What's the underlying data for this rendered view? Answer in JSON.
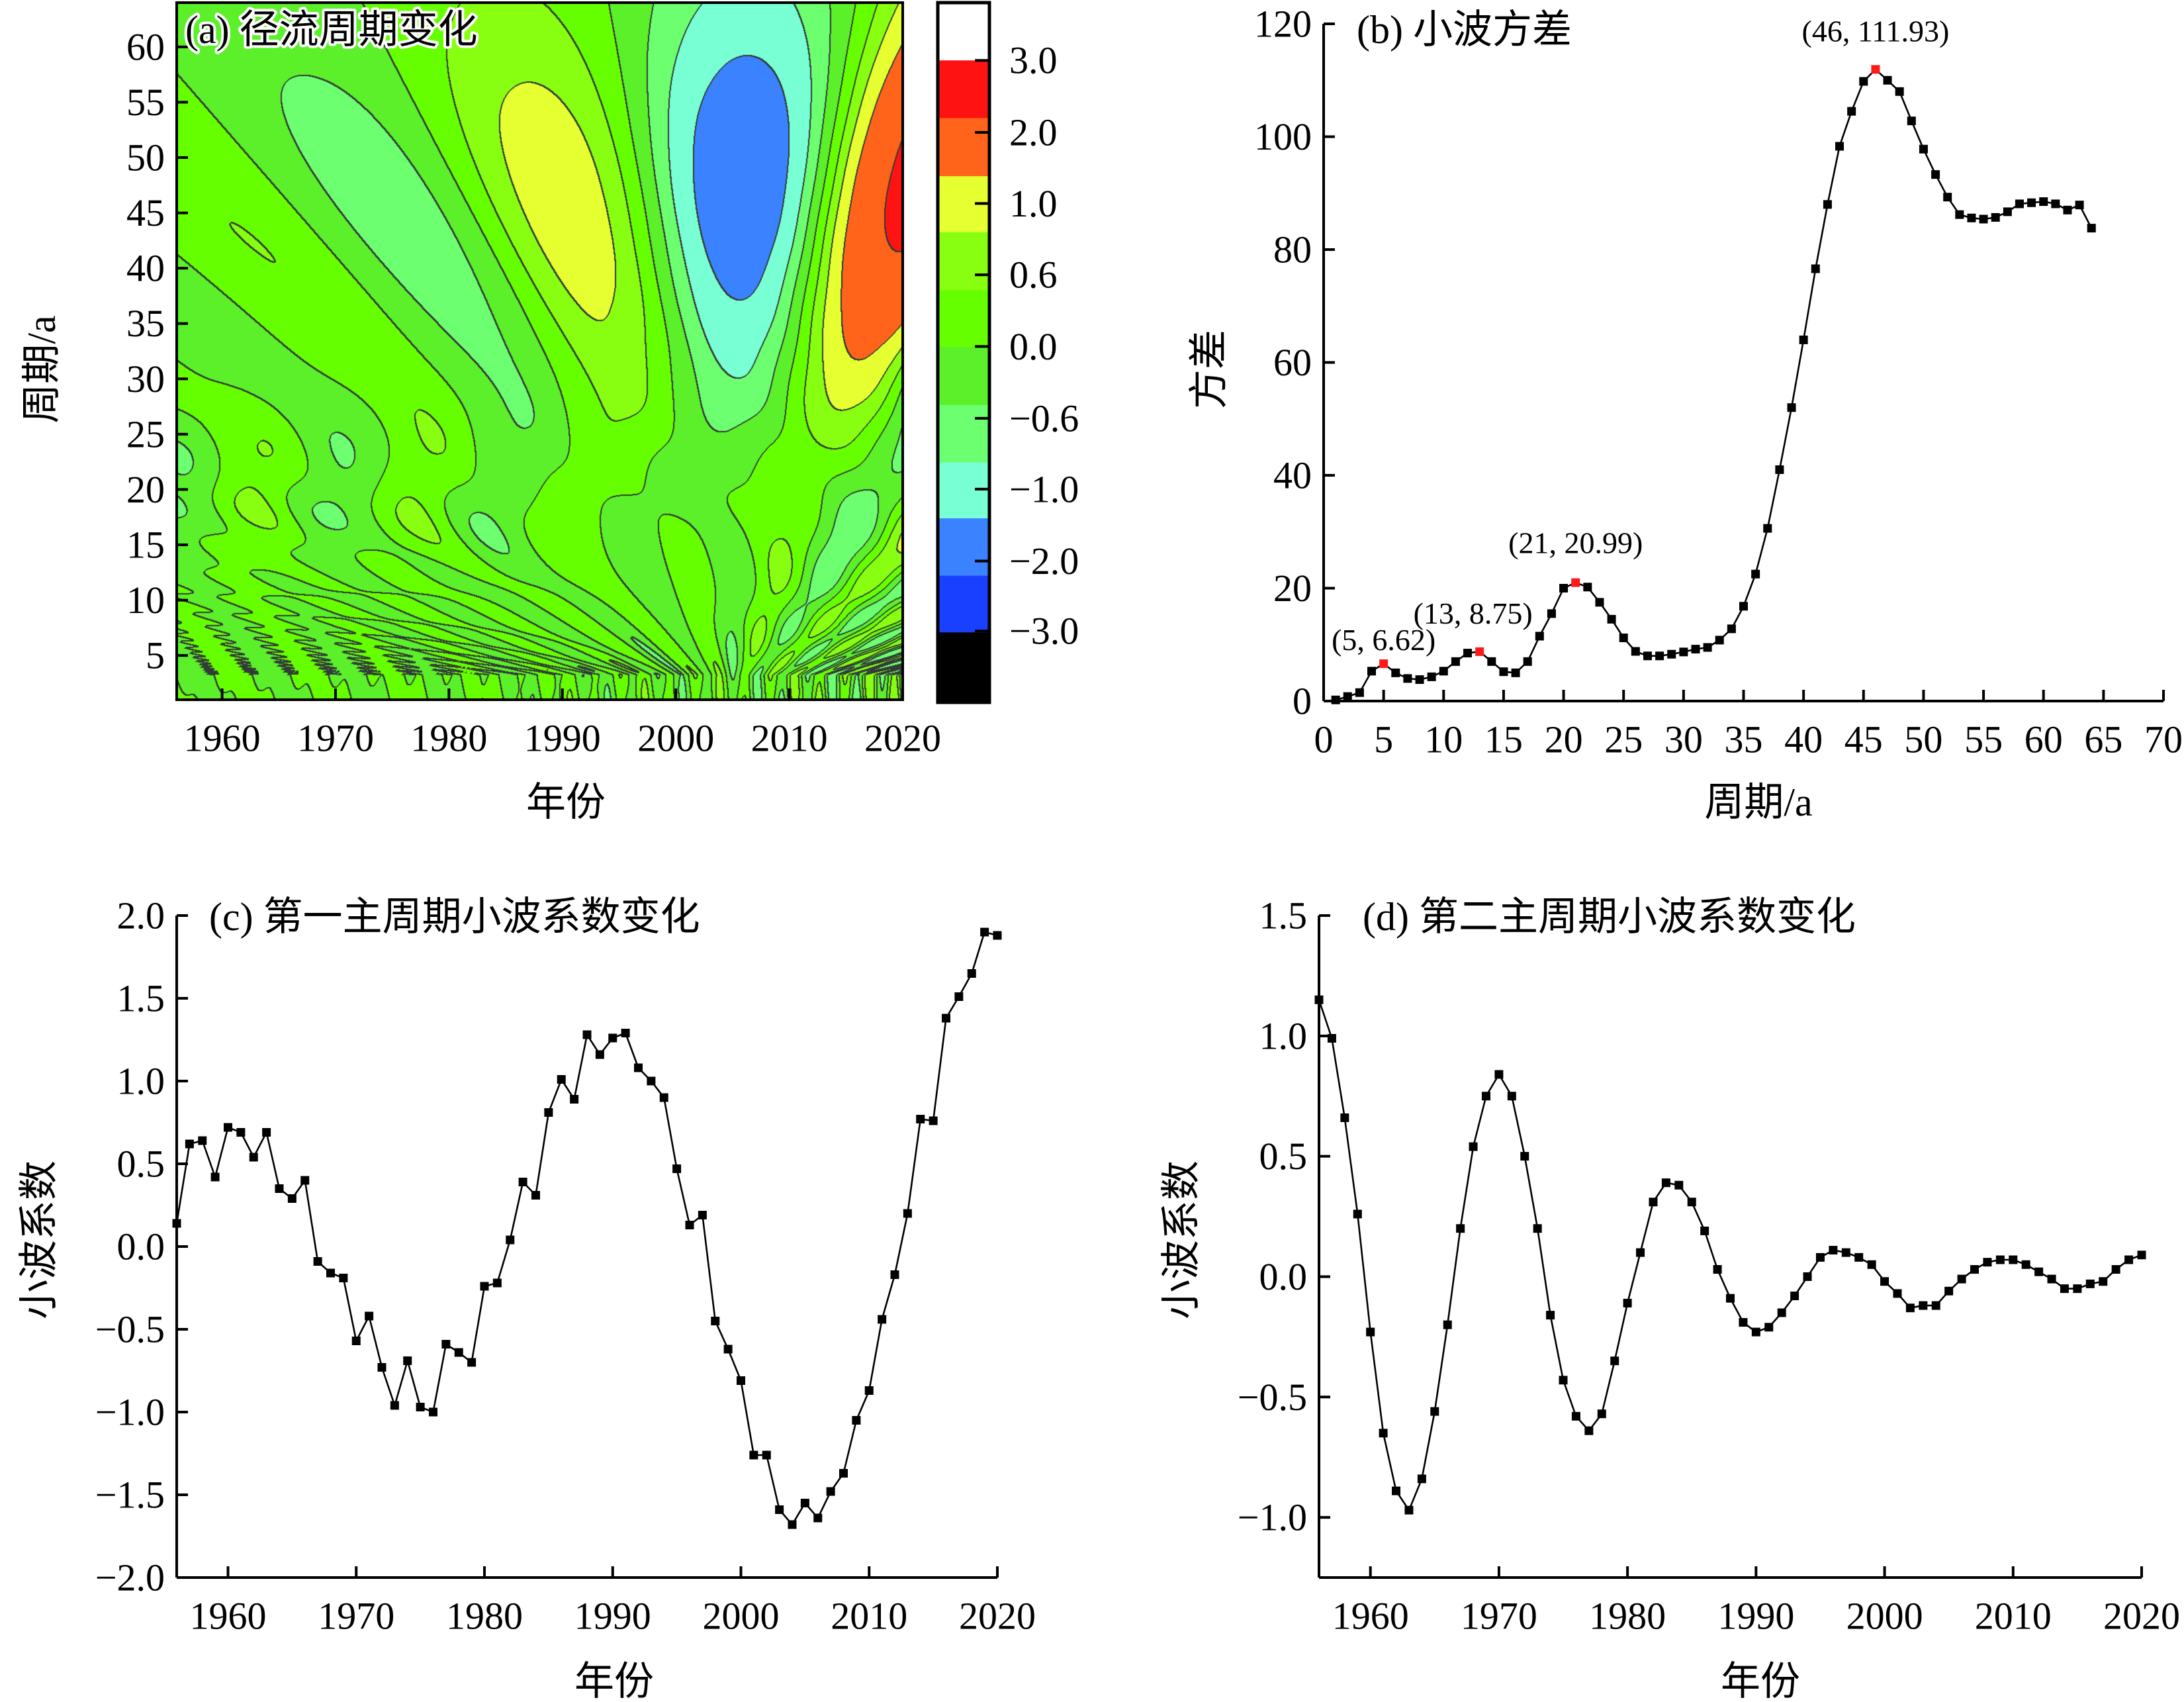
{
  "chart_data": [
    {
      "type": "heatmap",
      "title": "(a) 径流周期变化",
      "xlabel": "年份",
      "ylabel": "周期/a",
      "xlim": [
        1956,
        2020
      ],
      "ylim": [
        1,
        64
      ],
      "xticks": [
        1960,
        1970,
        1980,
        1990,
        2000,
        2010,
        2020
      ],
      "xtick_labels": [
        "1960",
        "1970",
        "1980",
        "1990",
        "2000",
        "2010",
        "2020"
      ],
      "yticks": [
        5,
        10,
        15,
        20,
        25,
        30,
        35,
        40,
        45,
        50,
        55,
        60
      ],
      "ytick_labels": [
        "5",
        "10",
        "15",
        "20",
        "25",
        "30",
        "35",
        "40",
        "45",
        "50",
        "55",
        "60"
      ],
      "contour_lines": true,
      "colorbar": {
        "tick_labels": [
          "3.0",
          "2.0",
          "1.0",
          "0.6",
          "0.0",
          "−0.6",
          "−1.0",
          "−2.0",
          "−3.0"
        ],
        "colors": [
          "#ffffff",
          "#ff1212",
          "#ff641a",
          "#e6ff30",
          "#88ff10",
          "#66ff00",
          "#5cf02a",
          "#6cff70",
          "#78ffd4",
          "#3a82ff",
          "#1a40ff",
          "#000000"
        ]
      }
    },
    {
      "type": "line",
      "title": "(b) 小波方差",
      "xlabel": "周期/a",
      "ylabel": "方差",
      "xlim": [
        0,
        70
      ],
      "ylim": [
        0,
        120
      ],
      "xticks": [
        0,
        5,
        10,
        15,
        20,
        25,
        30,
        35,
        40,
        45,
        50,
        55,
        60,
        65,
        70
      ],
      "xtick_labels": [
        "0",
        "5",
        "10",
        "15",
        "20",
        "25",
        "30",
        "35",
        "40",
        "45",
        "50",
        "55",
        "60",
        "65",
        "70"
      ],
      "yticks": [
        0,
        20,
        40,
        60,
        80,
        100,
        120
      ],
      "ytick_labels": [
        "0",
        "20",
        "40",
        "60",
        "80",
        "100",
        "120"
      ],
      "marker": "square",
      "line_color": "#000000",
      "highlight_color": "#ff1a1a",
      "x": [
        1,
        2,
        3,
        4,
        5,
        6,
        7,
        8,
        9,
        10,
        11,
        12,
        13,
        14,
        15,
        16,
        17,
        18,
        19,
        20,
        21,
        22,
        23,
        24,
        25,
        26,
        27,
        28,
        29,
        30,
        31,
        32,
        33,
        34,
        35,
        36,
        37,
        38,
        39,
        40,
        41,
        42,
        43,
        44,
        45,
        46,
        47,
        48,
        49,
        50,
        51,
        52,
        53,
        54,
        55,
        56,
        57,
        58,
        59,
        60,
        61,
        62,
        63,
        64
      ],
      "y": [
        0.2,
        0.8,
        1.5,
        5.3,
        6.62,
        5.0,
        4.0,
        3.8,
        4.3,
        5.3,
        7.0,
        8.5,
        8.75,
        7.0,
        5.2,
        5.0,
        7.0,
        11.5,
        15.5,
        20.0,
        20.99,
        20.2,
        17.5,
        14.5,
        11.2,
        8.8,
        8.0,
        8.0,
        8.3,
        8.7,
        9.2,
        9.5,
        10.8,
        12.8,
        16.8,
        22.5,
        30.6,
        41.0,
        52.0,
        64.0,
        76.6,
        88.0,
        98.3,
        104.5,
        109.8,
        111.93,
        110.0,
        108.0,
        102.8,
        97.8,
        93.3,
        89.3,
        86.2,
        85.6,
        85.4,
        85.7,
        86.7,
        88.1,
        88.3,
        88.5,
        88.1,
        87.0,
        87.9,
        83.8
      ],
      "annotations": [
        {
          "x": 5,
          "y": 6.62,
          "label": "(5, 6.62)"
        },
        {
          "x": 13,
          "y": 8.75,
          "label": "(13, 8.75)"
        },
        {
          "x": 21,
          "y": 20.99,
          "label": "(21, 20.99)"
        },
        {
          "x": 46,
          "y": 111.93,
          "label": "(46, 111.93)"
        }
      ]
    },
    {
      "type": "line",
      "title": "(c) 第一主周期小波系数变化",
      "xlabel": "年份",
      "ylabel": "小波系数",
      "xlim": [
        1956,
        2020
      ],
      "ylim": [
        -2.0,
        2.0
      ],
      "xticks": [
        1960,
        1970,
        1980,
        1990,
        2000,
        2010,
        2020
      ],
      "xtick_labels": [
        "1960",
        "1970",
        "1980",
        "1990",
        "2000",
        "2010",
        "2020"
      ],
      "yticks": [
        2.0,
        1.5,
        1.0,
        0.5,
        0.0,
        -0.5,
        -1.0,
        -1.5,
        -2.0
      ],
      "ytick_labels": [
        "2.0",
        "1.5",
        "1.0",
        "0.5",
        "0.0",
        "−0.5",
        "−1.0",
        "−1.5",
        "−2.0"
      ],
      "marker": "square",
      "line_color": "#000000",
      "x": [
        1956,
        1957,
        1958,
        1959,
        1960,
        1961,
        1962,
        1963,
        1964,
        1965,
        1966,
        1967,
        1968,
        1969,
        1970,
        1971,
        1972,
        1973,
        1974,
        1975,
        1976,
        1977,
        1978,
        1979,
        1980,
        1981,
        1982,
        1983,
        1984,
        1985,
        1986,
        1987,
        1988,
        1989,
        1990,
        1991,
        1992,
        1993,
        1994,
        1995,
        1996,
        1997,
        1998,
        1999,
        2000,
        2001,
        2002,
        2003,
        2004,
        2005,
        2006,
        2007,
        2008,
        2009,
        2010,
        2011,
        2012,
        2013,
        2014,
        2015,
        2016,
        2017,
        2018,
        2019,
        2020
      ],
      "y": [
        0.14,
        0.62,
        0.64,
        0.42,
        0.72,
        0.69,
        0.54,
        0.69,
        0.35,
        0.29,
        0.4,
        -0.09,
        -0.16,
        -0.19,
        -0.57,
        -0.42,
        -0.73,
        -0.96,
        -0.69,
        -0.97,
        -1.0,
        -0.59,
        -0.64,
        -0.7,
        -0.24,
        -0.22,
        0.04,
        0.39,
        0.31,
        0.81,
        1.01,
        0.89,
        1.28,
        1.16,
        1.26,
        1.29,
        1.08,
        1.0,
        0.9,
        0.47,
        0.13,
        0.19,
        -0.45,
        -0.62,
        -0.81,
        -1.26,
        -1.26,
        -1.59,
        -1.68,
        -1.55,
        -1.64,
        -1.48,
        -1.37,
        -1.05,
        -0.87,
        -0.44,
        -0.17,
        0.2,
        0.77,
        0.76,
        1.38,
        1.51,
        1.65,
        1.9,
        1.88
      ]
    },
    {
      "type": "line",
      "title": "(d) 第二主周期小波系数变化",
      "xlabel": "年份",
      "ylabel": "小波系数",
      "xlim": [
        1956,
        2020
      ],
      "ylim": [
        -1.25,
        1.5
      ],
      "xticks": [
        1960,
        1970,
        1980,
        1990,
        2000,
        2010,
        2020
      ],
      "xtick_labels": [
        "1960",
        "1970",
        "1980",
        "1990",
        "2000",
        "2010",
        "2020"
      ],
      "yticks": [
        1.5,
        1.0,
        0.5,
        0.0,
        -0.5,
        -1.0
      ],
      "ytick_labels": [
        "1.5",
        "1.0",
        "0.5",
        "0.0",
        "−0.5",
        "−1.0"
      ],
      "marker": "square",
      "line_color": "#000000",
      "x": [
        1956,
        1957,
        1958,
        1959,
        1960,
        1961,
        1962,
        1963,
        1964,
        1965,
        1966,
        1967,
        1968,
        1969,
        1970,
        1971,
        1972,
        1973,
        1974,
        1975,
        1976,
        1977,
        1978,
        1979,
        1980,
        1981,
        1982,
        1983,
        1984,
        1985,
        1986,
        1987,
        1988,
        1989,
        1990,
        1991,
        1992,
        1993,
        1994,
        1995,
        1996,
        1997,
        1998,
        1999,
        2000,
        2001,
        2002,
        2003,
        2004,
        2005,
        2006,
        2007,
        2008,
        2009,
        2010,
        2011,
        2012,
        2013,
        2014,
        2015,
        2016,
        2017,
        2018,
        2019,
        2020
      ],
      "y": [
        1.15,
        0.99,
        0.66,
        0.26,
        -0.23,
        -0.65,
        -0.89,
        -0.97,
        -0.84,
        -0.56,
        -0.2,
        0.2,
        0.54,
        0.75,
        0.84,
        0.75,
        0.5,
        0.2,
        -0.16,
        -0.43,
        -0.58,
        -0.64,
        -0.57,
        -0.35,
        -0.11,
        0.1,
        0.31,
        0.39,
        0.38,
        0.31,
        0.19,
        0.03,
        -0.09,
        -0.19,
        -0.23,
        -0.21,
        -0.15,
        -0.08,
        0.0,
        0.08,
        0.11,
        0.1,
        0.08,
        0.05,
        -0.02,
        -0.07,
        -0.13,
        -0.12,
        -0.12,
        -0.06,
        -0.01,
        0.03,
        0.06,
        0.07,
        0.07,
        0.05,
        0.02,
        -0.01,
        -0.05,
        -0.05,
        -0.03,
        -0.02,
        0.03,
        0.07,
        0.09
      ]
    }
  ]
}
